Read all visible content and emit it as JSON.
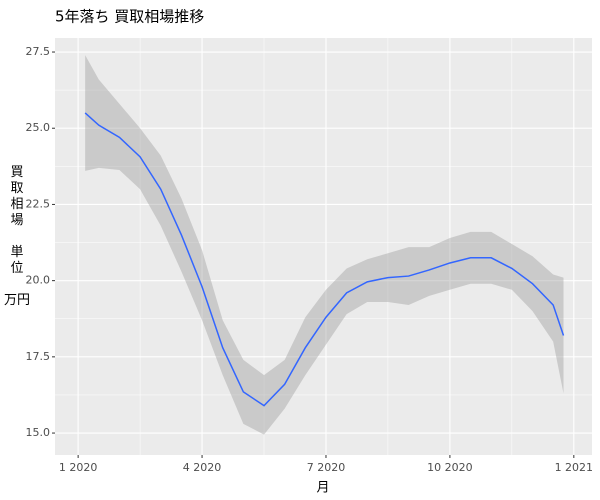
{
  "chart_data": {
    "type": "line",
    "title": "5年落ち 買取相場推移",
    "xlabel": "月",
    "ylabel": "買\n取\n相\n場\n\n単\n位\n\n万円",
    "x": [
      1.17,
      1.5,
      2,
      2.5,
      3,
      3.5,
      4,
      4.5,
      5,
      5.5,
      6,
      6.5,
      7,
      7.5,
      8,
      8.5,
      9,
      9.5,
      10,
      10.5,
      11,
      11.5,
      12,
      12.5,
      12.75
    ],
    "values": [
      25.5,
      25.1,
      24.7,
      24.06,
      23.0,
      21.5,
      19.8,
      17.8,
      16.35,
      15.9,
      16.6,
      17.8,
      18.8,
      19.6,
      19.96,
      20.1,
      20.15,
      20.35,
      20.58,
      20.75,
      20.75,
      20.4,
      19.9,
      19.2,
      18.2
    ],
    "lower": [
      23.6,
      23.7,
      23.63,
      23.0,
      21.8,
      20.3,
      18.7,
      16.9,
      15.3,
      14.95,
      15.8,
      16.9,
      17.9,
      18.9,
      19.3,
      19.3,
      19.2,
      19.5,
      19.7,
      19.9,
      19.9,
      19.7,
      19.0,
      18.0,
      16.3
    ],
    "upper": [
      27.4,
      26.6,
      25.8,
      25.0,
      24.1,
      22.7,
      21.0,
      18.7,
      17.4,
      16.9,
      17.4,
      18.8,
      19.7,
      20.4,
      20.7,
      20.9,
      21.1,
      21.1,
      21.4,
      21.6,
      21.6,
      21.2,
      20.8,
      20.2,
      20.1
    ],
    "color": "#3366FF",
    "band_color": "#999999",
    "xlim": [
      0.44,
      13.44
    ],
    "xticks": [
      {
        "value": 1,
        "label": "1 2020"
      },
      {
        "value": 4,
        "label": "4 2020"
      },
      {
        "value": 7,
        "label": "7 2020"
      },
      {
        "value": 10,
        "label": "10 2020"
      },
      {
        "value": 13,
        "label": "1 2021"
      }
    ],
    "ylim": [
      14.28,
      27.96
    ],
    "yticks": [
      {
        "value": 15,
        "label": "15.0"
      },
      {
        "value": 17.5,
        "label": "17.5"
      },
      {
        "value": 20,
        "label": "20.0"
      },
      {
        "value": 22.5,
        "label": "22.5"
      },
      {
        "value": 25,
        "label": "25.0"
      },
      {
        "value": 27.5,
        "label": "27.5"
      }
    ],
    "grid": true
  }
}
